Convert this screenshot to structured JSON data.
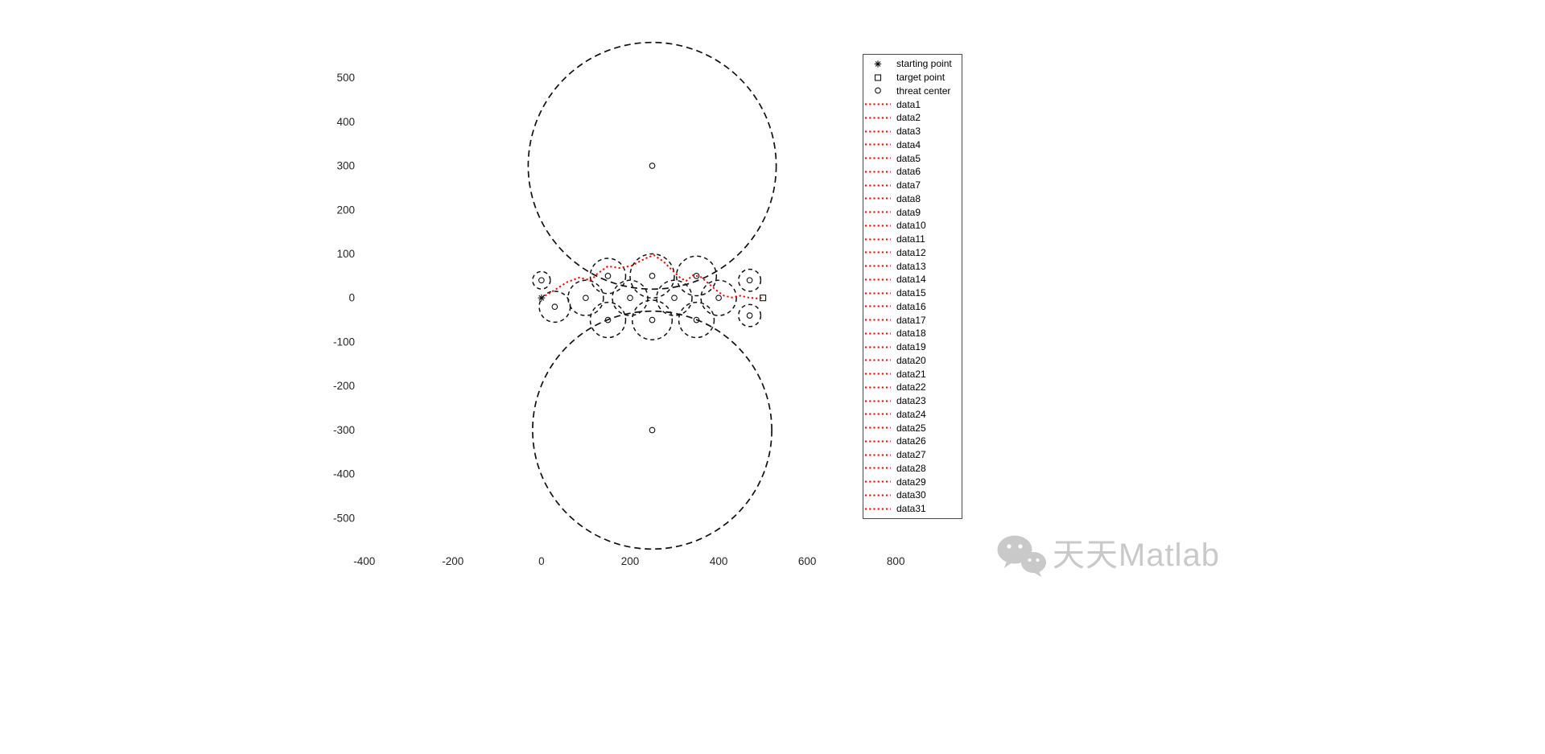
{
  "watermark": {
    "text": "天天Matlab",
    "icon": "wechat-icon",
    "color": "#c9c9c9"
  },
  "legend": {
    "border_color": "#4a4a4a",
    "marker_entries": [
      {
        "marker": "asterisk",
        "label": "starting point"
      },
      {
        "marker": "square",
        "label": "target point"
      },
      {
        "marker": "circle",
        "label": "threat center"
      }
    ],
    "line_entries": [
      "data1",
      "data2",
      "data3",
      "data4",
      "data5",
      "data6",
      "data7",
      "data8",
      "data9",
      "data10",
      "data11",
      "data12",
      "data13",
      "data14",
      "data15",
      "data16",
      "data17",
      "data18",
      "data19",
      "data20",
      "data21",
      "data22",
      "data23",
      "data24",
      "data25",
      "data26",
      "data27",
      "data28",
      "data29",
      "data30",
      "data31"
    ]
  },
  "chart_data": {
    "type": "line",
    "title": "",
    "xlabel": "",
    "ylabel": "",
    "grid": false,
    "legend_position": "upper right",
    "xlim": [
      -405,
      885
    ],
    "ylim": [
      -575,
      585
    ],
    "x_ticks": [
      -400,
      -200,
      0,
      200,
      400,
      600,
      800
    ],
    "y_ticks": [
      -500,
      -400,
      -300,
      -200,
      -100,
      0,
      100,
      200,
      300,
      400,
      500
    ],
    "tick_color": "#262626",
    "threat_color": "#111111",
    "start_point": {
      "x": 0,
      "y": 0
    },
    "target_point": {
      "x": 500,
      "y": 0
    },
    "threat_circles": [
      {
        "x": 250,
        "y": 300,
        "r": 280
      },
      {
        "x": 250,
        "y": -300,
        "r": 270
      },
      {
        "x": 0,
        "y": 40,
        "r": 20
      },
      {
        "x": 30,
        "y": -20,
        "r": 35
      },
      {
        "x": 100,
        "y": 0,
        "r": 40
      },
      {
        "x": 150,
        "y": 50,
        "r": 40
      },
      {
        "x": 150,
        "y": -50,
        "r": 40
      },
      {
        "x": 200,
        "y": 0,
        "r": 40
      },
      {
        "x": 250,
        "y": 50,
        "r": 50
      },
      {
        "x": 250,
        "y": -50,
        "r": 45
      },
      {
        "x": 300,
        "y": 0,
        "r": 40
      },
      {
        "x": 350,
        "y": 50,
        "r": 45
      },
      {
        "x": 350,
        "y": -50,
        "r": 40
      },
      {
        "x": 400,
        "y": 0,
        "r": 40
      },
      {
        "x": 470,
        "y": 40,
        "r": 25
      },
      {
        "x": 470,
        "y": -40,
        "r": 25
      }
    ],
    "path": {
      "color": "#ff0000",
      "style": "dotted",
      "points": [
        [
          0,
          0
        ],
        [
          30,
          18
        ],
        [
          58,
          36
        ],
        [
          85,
          46
        ],
        [
          112,
          40
        ],
        [
          126,
          55
        ],
        [
          150,
          72
        ],
        [
          176,
          68
        ],
        [
          203,
          73
        ],
        [
          222,
          83
        ],
        [
          240,
          92
        ],
        [
          254,
          97
        ],
        [
          275,
          83
        ],
        [
          294,
          64
        ],
        [
          312,
          47
        ],
        [
          326,
          38
        ],
        [
          343,
          52
        ],
        [
          361,
          47
        ],
        [
          377,
          33
        ],
        [
          394,
          18
        ],
        [
          412,
          5
        ],
        [
          430,
          1
        ],
        [
          449,
          5
        ],
        [
          467,
          1
        ],
        [
          485,
          -1
        ],
        [
          500,
          0
        ]
      ]
    }
  }
}
